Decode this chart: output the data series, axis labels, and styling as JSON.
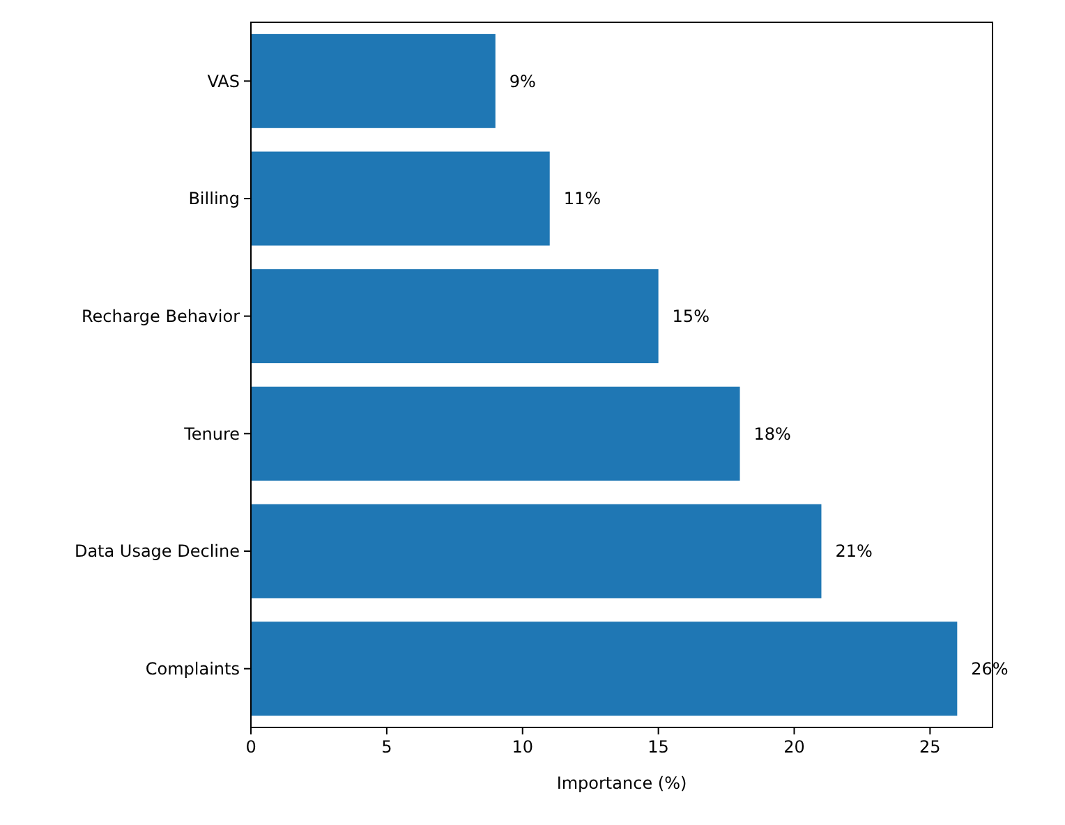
{
  "chart_data": {
    "type": "bar",
    "orientation": "horizontal",
    "xlabel": "Importance (%)",
    "categories": [
      "VAS",
      "Billing",
      "Recharge Behavior",
      "Tenure",
      "Data Usage Decline",
      "Complaints"
    ],
    "values": [
      9,
      11,
      15,
      18,
      21,
      26
    ],
    "value_labels": [
      "9%",
      "11%",
      "15%",
      "18%",
      "21%",
      "26%"
    ],
    "color": "#1f77b4",
    "xlim": [
      0,
      27.3
    ],
    "xticks": [
      0,
      5,
      10,
      15,
      20,
      25
    ],
    "grid": false
  }
}
